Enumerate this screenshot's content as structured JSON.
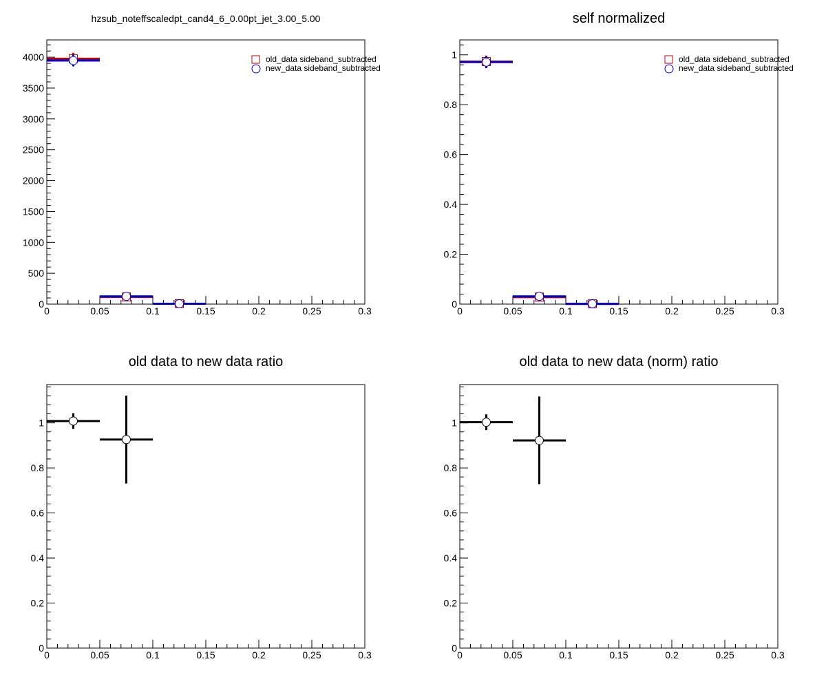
{
  "chart_data": [
    {
      "type": "scatter",
      "title": "hzsub_noteffscaledpt_cand4_6_0.00pt_jet_3.00_5.00",
      "xlim": [
        0,
        0.3
      ],
      "ylim": [
        0,
        4280
      ],
      "xticks": [
        "0",
        "0.05",
        "0.1",
        "0.15",
        "0.2",
        "0.25",
        "0.3"
      ],
      "yticks": [
        "0",
        "500",
        "1000",
        "1500",
        "2000",
        "2500",
        "3000",
        "3500",
        "4000"
      ],
      "grid": false,
      "legend": "top-right",
      "series": [
        {
          "name": "old_data sideband_subtracted",
          "marker": "open-square",
          "color": "#c00000",
          "bins": [
            [
              0,
              0.05
            ],
            [
              0.05,
              0.1
            ],
            [
              0.1,
              0.15
            ]
          ],
          "x": [
            0.025,
            0.075,
            0.125
          ],
          "y": [
            3975,
            115,
            5
          ],
          "yerr": [
            95,
            22,
            4
          ]
        },
        {
          "name": "new_data sideband_subtracted",
          "marker": "open-circle",
          "color": "#0000cc",
          "bins": [
            [
              0,
              0.05
            ],
            [
              0.05,
              0.1
            ],
            [
              0.1,
              0.15
            ]
          ],
          "x": [
            0.025,
            0.075,
            0.125
          ],
          "y": [
            3945,
            125,
            5
          ],
          "yerr": [
            95,
            22,
            4
          ]
        }
      ]
    },
    {
      "type": "scatter",
      "title": "self normalized",
      "xlim": [
        0,
        0.3
      ],
      "ylim": [
        0,
        1.06
      ],
      "xticks": [
        "0",
        "0.05",
        "0.1",
        "0.15",
        "0.2",
        "0.25",
        "0.3"
      ],
      "yticks": [
        "0",
        "0.2",
        "0.4",
        "0.6",
        "0.8",
        "1"
      ],
      "grid": false,
      "legend": "top-right",
      "series": [
        {
          "name": "old_data sideband_subtracted",
          "marker": "open-square",
          "color": "#c00000",
          "bins": [
            [
              0,
              0.05
            ],
            [
              0.05,
              0.1
            ],
            [
              0.1,
              0.15
            ]
          ],
          "x": [
            0.025,
            0.075,
            0.125
          ],
          "y": [
            0.973,
            0.028,
            0.001
          ],
          "yerr": [
            0.024,
            0.006,
            0.001
          ]
        },
        {
          "name": "new_data sideband_subtracted",
          "marker": "open-circle",
          "color": "#0000cc",
          "bins": [
            [
              0,
              0.05
            ],
            [
              0.05,
              0.1
            ],
            [
              0.1,
              0.15
            ]
          ],
          "x": [
            0.025,
            0.075,
            0.125
          ],
          "y": [
            0.971,
            0.031,
            0.001
          ],
          "yerr": [
            0.024,
            0.006,
            0.001
          ]
        }
      ]
    },
    {
      "type": "scatter",
      "title": "old data to new data ratio",
      "xlim": [
        0,
        0.3
      ],
      "ylim": [
        0,
        1.17
      ],
      "xticks": [
        "0",
        "0.05",
        "0.1",
        "0.15",
        "0.2",
        "0.25",
        "0.3"
      ],
      "yticks": [
        "0",
        "0.2",
        "0.4",
        "0.6",
        "0.8",
        "1"
      ],
      "grid": false,
      "series": [
        {
          "marker": "open-circle",
          "color": "#000000",
          "bins": [
            [
              0,
              0.05
            ],
            [
              0.05,
              0.1
            ]
          ],
          "x": [
            0.025,
            0.075
          ],
          "y": [
            1.008,
            0.926
          ],
          "yerr": [
            0.035,
            0.195
          ]
        }
      ]
    },
    {
      "type": "scatter",
      "title": "old data to new data (norm) ratio",
      "xlim": [
        0,
        0.3
      ],
      "ylim": [
        0,
        1.17
      ],
      "xticks": [
        "0",
        "0.05",
        "0.1",
        "0.15",
        "0.2",
        "0.25",
        "0.3"
      ],
      "yticks": [
        "0",
        "0.2",
        "0.4",
        "0.6",
        "0.8",
        "1"
      ],
      "grid": false,
      "series": [
        {
          "marker": "open-circle",
          "color": "#000000",
          "bins": [
            [
              0,
              0.05
            ],
            [
              0.05,
              0.1
            ]
          ],
          "x": [
            0.025,
            0.075
          ],
          "y": [
            1.003,
            0.922
          ],
          "yerr": [
            0.035,
            0.195
          ]
        }
      ]
    }
  ]
}
